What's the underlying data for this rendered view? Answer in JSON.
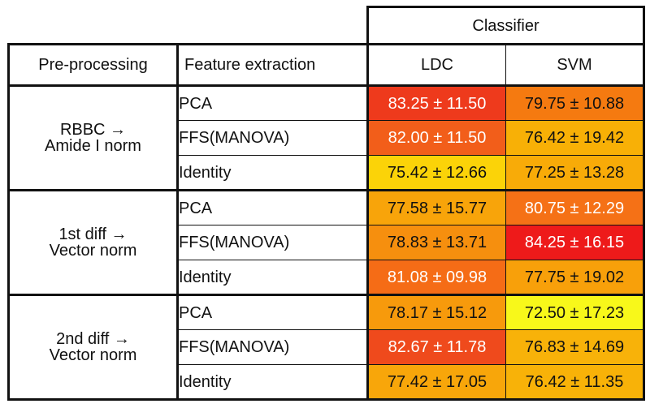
{
  "table": {
    "classifier_header": "Classifier",
    "col_preprocessing": "Pre-processing",
    "col_feature_extraction": "Feature extraction",
    "col_ldc": "LDC",
    "col_svm": "SVM",
    "groups": [
      {
        "pre_line1": "RBBC →",
        "pre_line2": "Amide I norm",
        "rows": [
          {
            "feature": "PCA",
            "ldc": "83.25 ± 11.50",
            "svm": "79.75 ± 10.88",
            "ldc_color": "#ee3a1c",
            "svm_color": "#f57a10"
          },
          {
            "feature": "FFS(MANOVA)",
            "ldc": "82.00 ± 11.50",
            "svm": "76.42 ± 19.42",
            "ldc_color": "#f25e1a",
            "svm_color": "#f8b006"
          },
          {
            "feature": "Identity",
            "ldc": "75.42 ± 12.66",
            "svm": "77.25 ± 13.28",
            "ldc_color": "#fbd308",
            "svm_color": "#f8ab08"
          }
        ]
      },
      {
        "pre_line1": "1st diff →",
        "pre_line2": "Vector norm",
        "rows": [
          {
            "feature": "PCA",
            "ldc": "77.58 ± 15.77",
            "svm": "80.75 ± 12.29",
            "ldc_color": "#f8a40a",
            "svm_color": "#f57116"
          },
          {
            "feature": "FFS(MANOVA)",
            "ldc": "78.83 ± 13.71",
            "svm": "84.25 ± 16.15",
            "ldc_color": "#f68f0e",
            "svm_color": "#ee1a1a"
          },
          {
            "feature": "Identity",
            "ldc": "81.08 ± 09.98",
            "svm": "77.75 ± 19.02",
            "ldc_color": "#f56c16",
            "svm_color": "#f8a00a"
          }
        ]
      },
      {
        "pre_line1": "2nd diff →",
        "pre_line2": "Vector norm",
        "rows": [
          {
            "feature": "PCA",
            "ldc": "78.17 ± 15.12",
            "svm": "72.50 ± 17.23",
            "ldc_color": "#f79a0c",
            "svm_color": "#f8f81a"
          },
          {
            "feature": "FFS(MANOVA)",
            "ldc": "82.67 ± 11.78",
            "svm": "76.83 ± 14.69",
            "ldc_color": "#ef4a1c",
            "svm_color": "#f8b209"
          },
          {
            "feature": "Identity",
            "ldc": "77.42 ± 17.05",
            "svm": "76.42 ± 11.35",
            "ldc_color": "#f8a60a",
            "svm_color": "#f8b208"
          }
        ]
      }
    ]
  }
}
